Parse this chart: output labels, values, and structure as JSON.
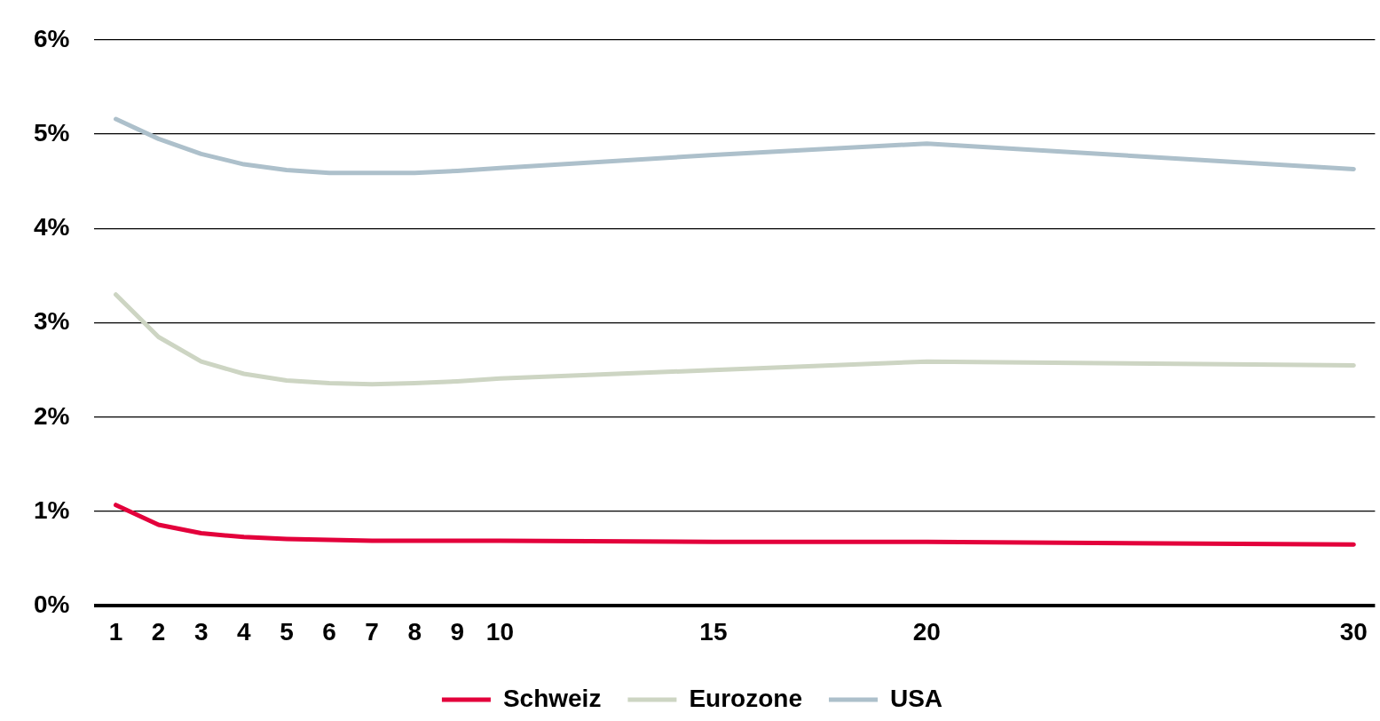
{
  "chart_data": {
    "type": "line",
    "x": [
      1,
      2,
      3,
      4,
      5,
      6,
      7,
      8,
      9,
      10,
      15,
      20,
      30
    ],
    "xlim": [
      0.5,
      30.5
    ],
    "xticks": [
      1,
      2,
      3,
      4,
      5,
      6,
      7,
      8,
      9,
      10,
      15,
      20,
      30
    ],
    "ylim": [
      0,
      6
    ],
    "yticks": [
      {
        "value": 0,
        "label": "0%"
      },
      {
        "value": 1,
        "label": "1%"
      },
      {
        "value": 2,
        "label": "2%"
      },
      {
        "value": 3,
        "label": "3%"
      },
      {
        "value": 4,
        "label": "4%"
      },
      {
        "value": 5,
        "label": "5%"
      },
      {
        "value": 6,
        "label": "6%"
      }
    ],
    "grid": "y",
    "legend": "bottom",
    "marker": "none",
    "line_style": "solid",
    "series": [
      {
        "name": "Schweiz",
        "color": "#e3003b",
        "values": [
          1.07,
          0.86,
          0.77,
          0.73,
          0.71,
          0.7,
          0.69,
          0.69,
          0.69,
          0.69,
          0.68,
          0.68,
          0.65
        ]
      },
      {
        "name": "Eurozone",
        "color": "#cdd5c3",
        "values": [
          3.3,
          2.85,
          2.59,
          2.46,
          2.39,
          2.36,
          2.35,
          2.36,
          2.38,
          2.41,
          2.5,
          2.59,
          2.55
        ]
      },
      {
        "name": "USA",
        "color": "#adc0cb",
        "values": [
          5.16,
          4.95,
          4.79,
          4.68,
          4.62,
          4.59,
          4.59,
          4.59,
          4.61,
          4.64,
          4.78,
          4.9,
          4.63
        ]
      }
    ]
  }
}
